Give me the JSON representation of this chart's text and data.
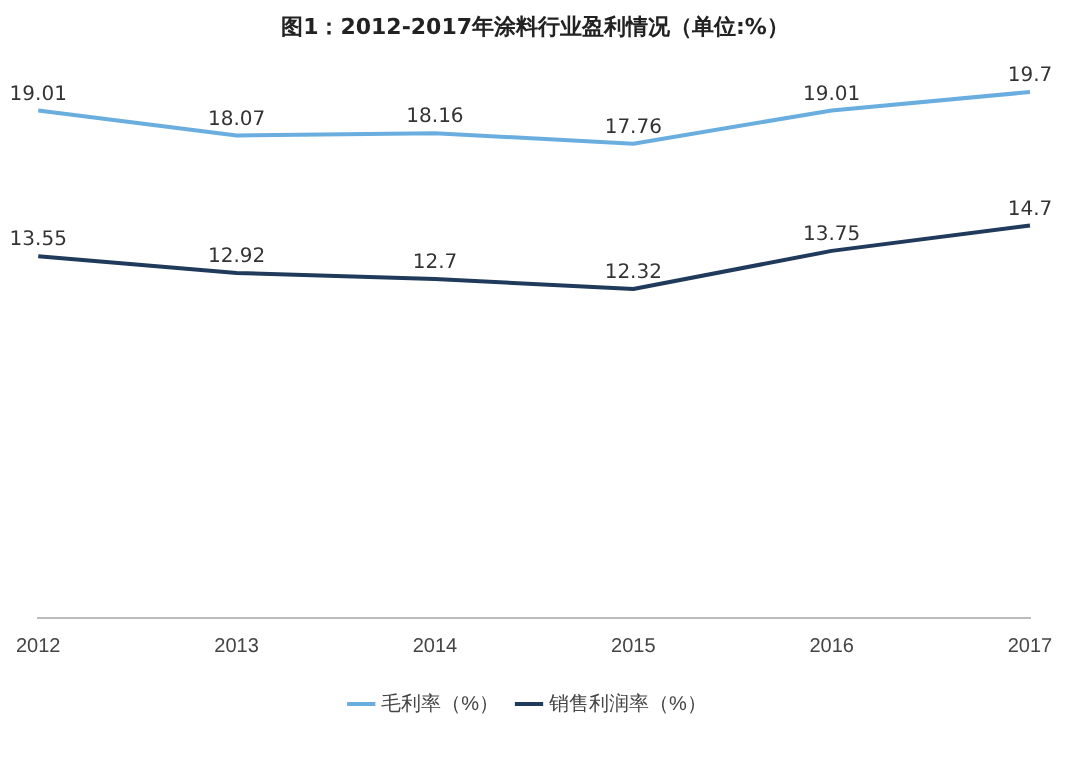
{
  "chart_data": {
    "type": "line",
    "title": "图1：2012-2017年涂料行业盈利情况（单位:%）",
    "categories": [
      "2012",
      "2013",
      "2014",
      "2015",
      "2016",
      "2017"
    ],
    "series": [
      {
        "name": "毛利率（%）",
        "color": "#6aaee0",
        "values": [
          19.01,
          18.07,
          18.16,
          17.76,
          19.01,
          19.7
        ]
      },
      {
        "name": "销售利润率（%）",
        "color": "#1f3a5a",
        "values": [
          13.55,
          12.92,
          12.7,
          12.32,
          13.75,
          14.7
        ]
      }
    ],
    "data_labels": true,
    "legend": "bottom",
    "grid": false,
    "marker": "none",
    "line_style": "solid",
    "tick_labels": "x"
  }
}
